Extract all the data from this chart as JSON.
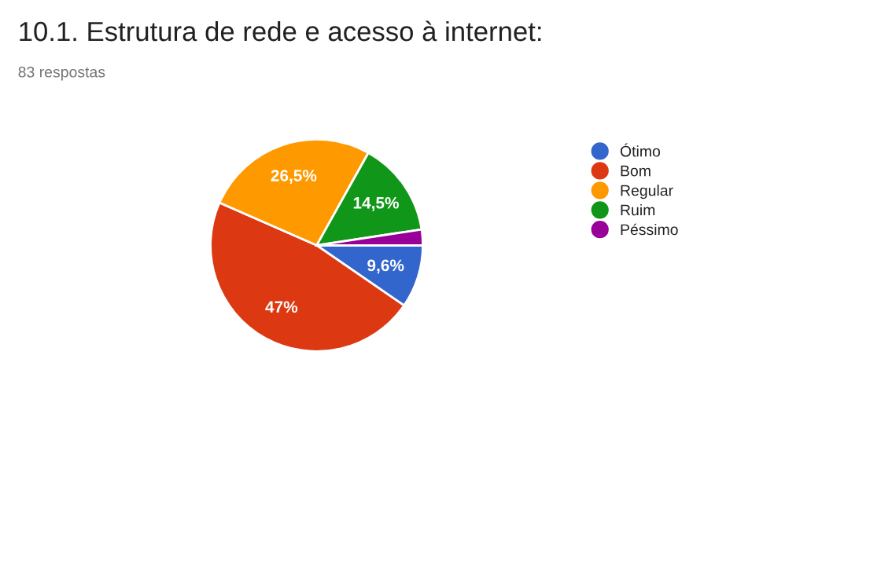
{
  "chart_data": {
    "type": "pie",
    "title": "10.1. Estrutura de rede e acesso à internet:",
    "subtitle": "83 respostas",
    "categories": [
      "Ótimo",
      "Bom",
      "Regular",
      "Ruim",
      "Péssimo"
    ],
    "values": [
      9.6,
      47,
      26.5,
      14.5,
      2.4
    ],
    "value_labels": [
      "9,6%",
      "47%",
      "26,5%",
      "14,5%",
      null
    ],
    "colors": [
      "#3366cc",
      "#dc3912",
      "#ff9900",
      "#109618",
      "#990099"
    ],
    "legend": "right"
  }
}
